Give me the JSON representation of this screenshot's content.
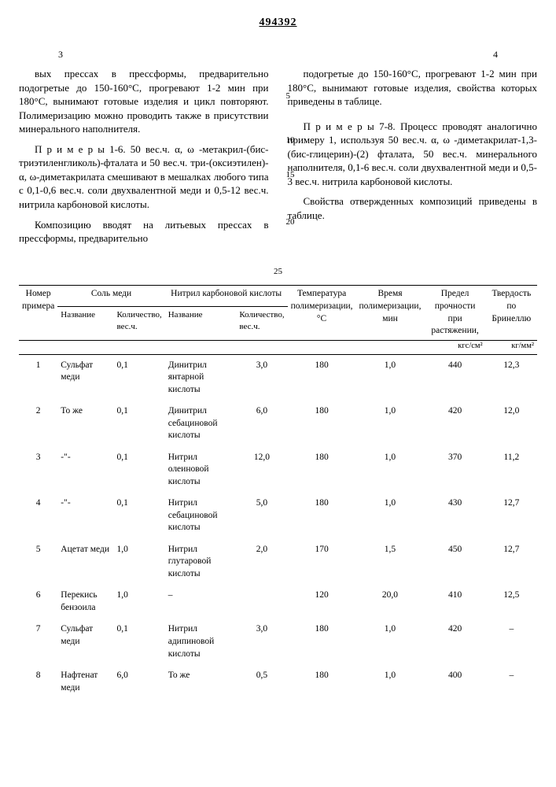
{
  "doc_number": "494392",
  "page_left_mark": "3",
  "page_right_mark": "4",
  "left_paragraphs": [
    "вых прессах в прессформы, предварительно подогретые до 150-160°С, прогревают 1-2 мин при 180°С, вынимают готовые изделия и цикл повторяют. Полимеризацию можно проводить также в присутствии минерального наполнителя.",
    "П р и м е р ы 1-6. 50 вес.ч. α, ω -метакрил-(бис-триэтиленгликоль)-фталата и 50 вес.ч. три-(оксиэтилен)-α, ω-диметакрилата смешивают в мешалках любого типа с 0,1-0,6 вес.ч. соли двухвалентной меди и 0,5-12 вес.ч. нитрила карбоновой кислоты.",
    "Композицию вводят на литьевых прессах в прессформы, предварительно"
  ],
  "right_paragraphs": [
    "подогретые до 150-160°С, прогревают 1-2 мин при 180°С, вынимают готовые изделия, свойства которых приведены в таблице.",
    "П р и м е р ы 7-8. Процесс проводят аналогично примеру 1, используя 50 вес.ч. α, ω -диметакрилат-1,3-(бис-глицерин)-(2) фталата, 50 вес.ч. минерального наполнителя, 0,1-6 вес.ч. соли двухвалентной меди и 0,5-3 вес.ч. нитрила карбоновой кислоты.",
    "Свойства отвержденных композиций приведены в таблице."
  ],
  "line_markers": [
    "5",
    "10",
    "15",
    "20"
  ],
  "center_marker": "25",
  "table": {
    "headers_row1": [
      "Номер примера",
      "Соль меди",
      "Нитрил карбоновой кислоты",
      "Температура полимеризации, °С",
      "Время полимеризации, мин",
      "Предел прочности при растяжении,",
      "Твердость по Бринеллю"
    ],
    "headers_row2": [
      "",
      "Название",
      "Количество, вес.ч.",
      "Название",
      "Количество, вес.ч.",
      "",
      "",
      "",
      ""
    ],
    "units": [
      "",
      "",
      "",
      "",
      "",
      "",
      "",
      "кгс/см²",
      "кг/мм²"
    ],
    "rows": [
      [
        "1",
        "Сульфат меди",
        "0,1",
        "Динитрил янтарной кислоты",
        "3,0",
        "180",
        "1,0",
        "440",
        "12,3"
      ],
      [
        "2",
        "То же",
        "0,1",
        "Динитрил себациновой кислоты",
        "6,0",
        "180",
        "1,0",
        "420",
        "12,0"
      ],
      [
        "3",
        "-\"-",
        "0,1",
        "Нитрил олеиновой кислоты",
        "12,0",
        "180",
        "1,0",
        "370",
        "11,2"
      ],
      [
        "4",
        "-\"-",
        "0,1",
        "Нитрил себациновой кислоты",
        "5,0",
        "180",
        "1,0",
        "430",
        "12,7"
      ],
      [
        "5",
        "Ацетат меди",
        "1,0",
        "Нитрил глутаровой кислоты",
        "2,0",
        "170",
        "1,5",
        "450",
        "12,7"
      ],
      [
        "6",
        "Перекись бензоила",
        "1,0",
        "–",
        "",
        "120",
        "20,0",
        "410",
        "12,5"
      ],
      [
        "7",
        "Сульфат меди",
        "0,1",
        "Нитрил адипиновой кислоты",
        "3,0",
        "180",
        "1,0",
        "420",
        "–"
      ],
      [
        "8",
        "Нафтенат меди",
        "6,0",
        "То же",
        "0,5",
        "180",
        "1,0",
        "400",
        "–"
      ]
    ]
  }
}
